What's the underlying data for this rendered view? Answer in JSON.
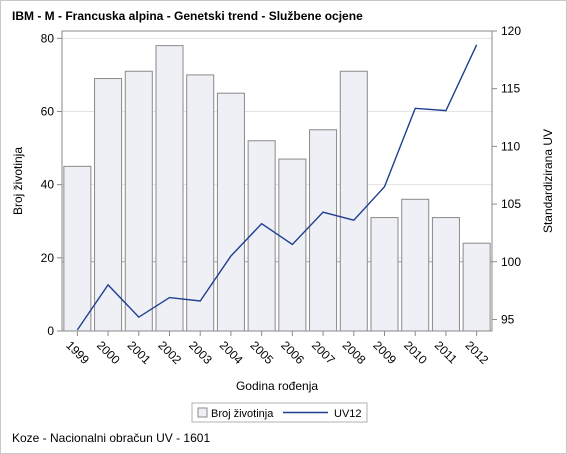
{
  "title": "IBM - M - Francuska alpina - Genetski trend - Službene ocjene",
  "footnote": "Koze - Nacionalni obračun UV - 1601",
  "colors": {
    "bar_fill": "#eef0f6",
    "bar_stroke": "#8a8a8a",
    "line": "#1f3f8f",
    "grid": "#e3e3e3",
    "refline": "#a0a0a0",
    "frame": "#8a8a8a"
  },
  "chart_data": {
    "type": "bar",
    "categories": [
      "1999",
      "2000",
      "2001",
      "2002",
      "2003",
      "2004",
      "2005",
      "2006",
      "2007",
      "2008",
      "2009",
      "2010",
      "2011",
      "2012"
    ],
    "xlabel": "Godina rođenja",
    "ylabel": "Broj životinja",
    "y2label": "Standardizirana UV",
    "ylim": [
      0,
      82
    ],
    "yticks": [
      0,
      20,
      40,
      60,
      80
    ],
    "y2lim": [
      94,
      120
    ],
    "y2ticks": [
      95,
      100,
      105,
      110,
      115,
      120
    ],
    "grid": true,
    "legend_position": "bottom",
    "series": [
      {
        "name": "Broj životinja",
        "type": "bar",
        "axis": "left",
        "values": [
          45,
          69,
          71,
          78,
          70,
          65,
          52,
          47,
          55,
          71,
          31,
          36,
          31,
          24
        ]
      },
      {
        "name": "UV12",
        "type": "line",
        "axis": "right",
        "values": [
          94.1,
          98.0,
          95.2,
          96.9,
          96.6,
          100.5,
          103.3,
          101.5,
          104.3,
          103.6,
          106.5,
          113.3,
          113.1,
          118.8
        ]
      }
    ],
    "reference_line": {
      "axis": "right",
      "value": 100
    }
  }
}
